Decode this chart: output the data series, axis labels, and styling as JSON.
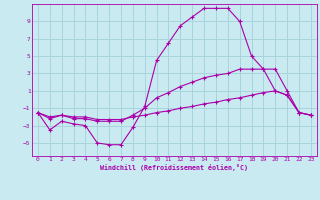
{
  "xlabel": "Windchill (Refroidissement éolien,°C)",
  "bg_color": "#c8eaf0",
  "grid_color": "#aad4dc",
  "line_color": "#aa00aa",
  "x_ticks": [
    0,
    1,
    2,
    3,
    4,
    5,
    6,
    7,
    8,
    9,
    10,
    11,
    12,
    13,
    14,
    15,
    16,
    17,
    18,
    19,
    20,
    21,
    22,
    23
  ],
  "y_ticks": [
    -5,
    -3,
    -1,
    1,
    3,
    5,
    7,
    9
  ],
  "xlim": [
    -0.5,
    23.5
  ],
  "ylim": [
    -6.5,
    11.0
  ],
  "line1_x": [
    0,
    1,
    2,
    3,
    4,
    5,
    6,
    7,
    8,
    9,
    10,
    11,
    12,
    13,
    14,
    15,
    16,
    17,
    18,
    19,
    20,
    21,
    22,
    23
  ],
  "line1_y": [
    -1.5,
    -3.5,
    -2.5,
    -2.8,
    -3.0,
    -5.0,
    -5.2,
    -5.2,
    -3.2,
    -0.8,
    4.5,
    6.5,
    8.5,
    9.5,
    10.5,
    10.5,
    10.5,
    9.0,
    5.0,
    3.5,
    1.0,
    0.5,
    -1.5,
    -1.8
  ],
  "line2_x": [
    0,
    1,
    2,
    3,
    4,
    5,
    6,
    7,
    8,
    9,
    10,
    11,
    12,
    13,
    14,
    15,
    16,
    17,
    18,
    19,
    20,
    21,
    22,
    23
  ],
  "line2_y": [
    -1.5,
    -2.2,
    -1.8,
    -2.2,
    -2.2,
    -2.5,
    -2.5,
    -2.5,
    -1.8,
    -1.0,
    0.2,
    0.8,
    1.5,
    2.0,
    2.5,
    2.8,
    3.0,
    3.5,
    3.5,
    3.5,
    3.5,
    1.0,
    -1.5,
    -1.8
  ],
  "line3_x": [
    0,
    1,
    2,
    3,
    4,
    5,
    6,
    7,
    8,
    9,
    10,
    11,
    12,
    13,
    14,
    15,
    16,
    17,
    18,
    19,
    20,
    21,
    22,
    23
  ],
  "line3_y": [
    -1.5,
    -2.0,
    -1.8,
    -2.0,
    -2.0,
    -2.3,
    -2.3,
    -2.3,
    -2.0,
    -1.8,
    -1.5,
    -1.3,
    -1.0,
    -0.8,
    -0.5,
    -0.3,
    0.0,
    0.2,
    0.5,
    0.8,
    1.0,
    0.5,
    -1.5,
    -1.8
  ]
}
